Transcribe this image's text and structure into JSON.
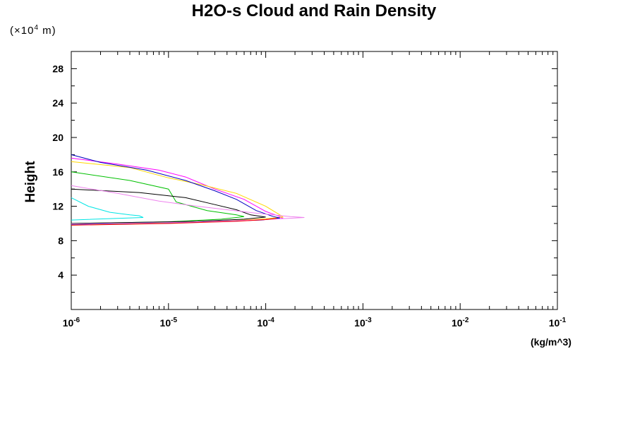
{
  "chart_data": {
    "type": "line",
    "title": "H2O-s Cloud and Rain Density",
    "y_unit": {
      "prefix": "(×10",
      "exp": "4",
      "suffix": " m)"
    },
    "ylabel": "Height",
    "xlabel": "(kg/m^3)",
    "x_scale": "log",
    "xlim": [
      1e-06,
      0.1
    ],
    "ylim": [
      0,
      30
    ],
    "y_ticks": [
      4,
      8,
      12,
      16,
      20,
      24,
      28
    ],
    "x_ticks": [
      {
        "value": 1e-06,
        "base": "10",
        "exp": "-6"
      },
      {
        "value": 1e-05,
        "base": "10",
        "exp": "-5"
      },
      {
        "value": 0.0001,
        "base": "10",
        "exp": "-4"
      },
      {
        "value": 0.001,
        "base": "10",
        "exp": "-3"
      },
      {
        "value": 0.01,
        "base": "10",
        "exp": "-2"
      },
      {
        "value": 0.1,
        "base": "10",
        "exp": "-1"
      }
    ],
    "grid": false,
    "series": [
      {
        "color": "#ff00ff",
        "points": [
          [
            1e-06,
            17.6
          ],
          [
            3e-06,
            16.9
          ],
          [
            8e-06,
            16.2
          ],
          [
            1.5e-05,
            15.4
          ],
          [
            3e-05,
            14.0
          ],
          [
            6e-05,
            12.8
          ],
          [
            0.0001,
            11.4
          ],
          [
            0.00014,
            10.8
          ],
          [
            0.00015,
            10.6
          ],
          [
            0.0001,
            10.45
          ],
          [
            5e-05,
            10.3
          ],
          [
            1e-05,
            10.1
          ],
          [
            1e-06,
            9.9
          ]
        ]
      },
      {
        "color": "#ffd700",
        "points": [
          [
            1e-06,
            17.2
          ],
          [
            4e-06,
            16.5
          ],
          [
            1e-05,
            15.3
          ],
          [
            2.2e-05,
            14.5
          ],
          [
            5e-05,
            13.5
          ],
          [
            0.0001,
            12.0
          ],
          [
            0.00014,
            11.0
          ],
          [
            0.00015,
            10.75
          ],
          [
            0.0001,
            10.55
          ],
          [
            4e-05,
            10.3
          ],
          [
            1e-05,
            10.05
          ],
          [
            1e-06,
            9.8
          ]
        ]
      },
      {
        "color": "#0000c0",
        "points": [
          [
            1e-06,
            18.0
          ],
          [
            2e-06,
            17.1
          ],
          [
            6e-06,
            16.2
          ],
          [
            1.5e-05,
            15.0
          ],
          [
            3e-05,
            13.8
          ],
          [
            5e-05,
            12.8
          ],
          [
            8e-05,
            11.5
          ],
          [
            0.00012,
            10.8
          ],
          [
            0.00014,
            10.65
          ],
          [
            9e-05,
            10.4
          ],
          [
            2e-05,
            10.15
          ],
          [
            1e-06,
            9.9
          ]
        ]
      },
      {
        "color": "#00c000",
        "points": [
          [
            1e-06,
            16.0
          ],
          [
            4e-06,
            15.0
          ],
          [
            1e-05,
            14.0
          ],
          [
            1.2e-05,
            12.5
          ],
          [
            2.5e-05,
            11.5
          ],
          [
            5e-05,
            11.0
          ],
          [
            6e-05,
            10.8
          ],
          [
            3.5e-05,
            10.5
          ],
          [
            1e-05,
            10.2
          ],
          [
            1e-06,
            10.0
          ]
        ]
      },
      {
        "color": "#000000",
        "points": [
          [
            1e-06,
            14.0
          ],
          [
            5e-06,
            13.6
          ],
          [
            1.5e-05,
            13.0
          ],
          [
            3e-05,
            12.2
          ],
          [
            5e-05,
            11.6
          ],
          [
            7e-05,
            11.0
          ],
          [
            0.0001,
            10.75
          ],
          [
            6e-05,
            10.5
          ],
          [
            2e-05,
            10.25
          ],
          [
            1e-06,
            10.0
          ]
        ]
      },
      {
        "color": "#ee82ee",
        "points": [
          [
            1e-06,
            14.4
          ],
          [
            3e-06,
            13.5
          ],
          [
            8e-06,
            12.6
          ],
          [
            2e-05,
            12.0
          ],
          [
            8e-05,
            11.2
          ],
          [
            0.00018,
            10.8
          ],
          [
            0.00025,
            10.7
          ],
          [
            0.00012,
            10.5
          ],
          [
            4e-05,
            10.3
          ],
          [
            1e-05,
            10.1
          ],
          [
            1e-06,
            9.95
          ]
        ]
      },
      {
        "color": "#00e5e5",
        "points": [
          [
            1e-06,
            13.0
          ],
          [
            1.5e-06,
            12.0
          ],
          [
            2.5e-06,
            11.3
          ],
          [
            4e-06,
            11.0
          ],
          [
            5e-06,
            10.9
          ],
          [
            5.5e-06,
            10.7
          ],
          [
            3e-06,
            10.6
          ],
          [
            1e-06,
            10.4
          ]
        ]
      },
      {
        "color": "#ff0000",
        "points": [
          [
            1e-06,
            9.8
          ],
          [
            1e-05,
            10.0
          ],
          [
            5e-05,
            10.25
          ],
          [
            0.0001,
            10.45
          ],
          [
            0.00013,
            10.6
          ]
        ]
      }
    ]
  }
}
